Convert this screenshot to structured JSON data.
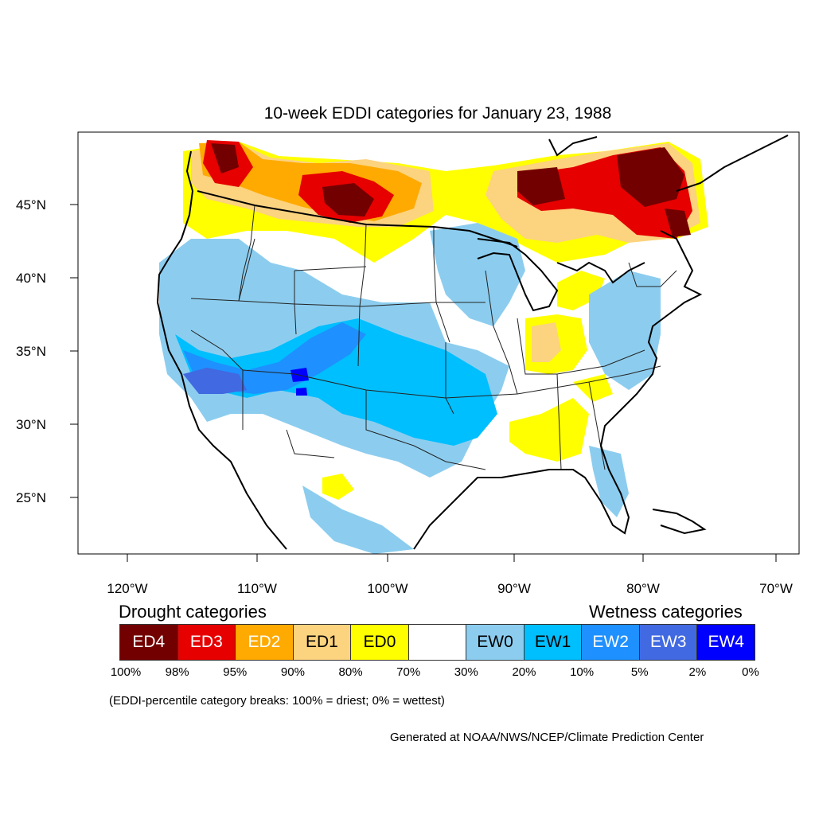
{
  "title": "10-week EDDI categories for January 23, 1988",
  "lat_labels": [
    "45°N",
    "40°N",
    "35°N",
    "30°N",
    "25°N"
  ],
  "lon_labels": [
    "120°W",
    "110°W",
    "100°W",
    "90°W",
    "80°W",
    "70°W"
  ],
  "legend": {
    "drought_heading": "Drought categories",
    "wetness_heading": "Wetness categories",
    "categories": [
      {
        "label": "ED4",
        "color": "#730000",
        "text_color": "#ffffff"
      },
      {
        "label": "ED3",
        "color": "#e60000",
        "text_color": "#ffffff"
      },
      {
        "label": "ED2",
        "color": "#ffaa00",
        "text_color": "#ffffff"
      },
      {
        "label": "ED1",
        "color": "#fcd37f",
        "text_color": "#000000"
      },
      {
        "label": "ED0",
        "color": "#ffff00",
        "text_color": "#000000"
      },
      {
        "label": "",
        "color": "#ffffff",
        "text_color": "#000000"
      },
      {
        "label": "EW0",
        "color": "#8ccdef",
        "text_color": "#000000"
      },
      {
        "label": "EW1",
        "color": "#00bfff",
        "text_color": "#000000"
      },
      {
        "label": "EW2",
        "color": "#1e90ff",
        "text_color": "#ffffff"
      },
      {
        "label": "EW3",
        "color": "#4169e1",
        "text_color": "#ffffff"
      },
      {
        "label": "EW4",
        "color": "#0000ff",
        "text_color": "#ffffff"
      }
    ],
    "breaks": [
      "100%",
      "98%",
      "95%",
      "90%",
      "80%",
      "70%",
      "30%",
      "20%",
      "10%",
      "5%",
      "2%",
      "0%"
    ],
    "note": "(EDDI-percentile category breaks: 100% = driest; 0% = wettest)"
  },
  "credit": "Generated at NOAA/NWS/NCEP/Climate Prediction Center"
}
